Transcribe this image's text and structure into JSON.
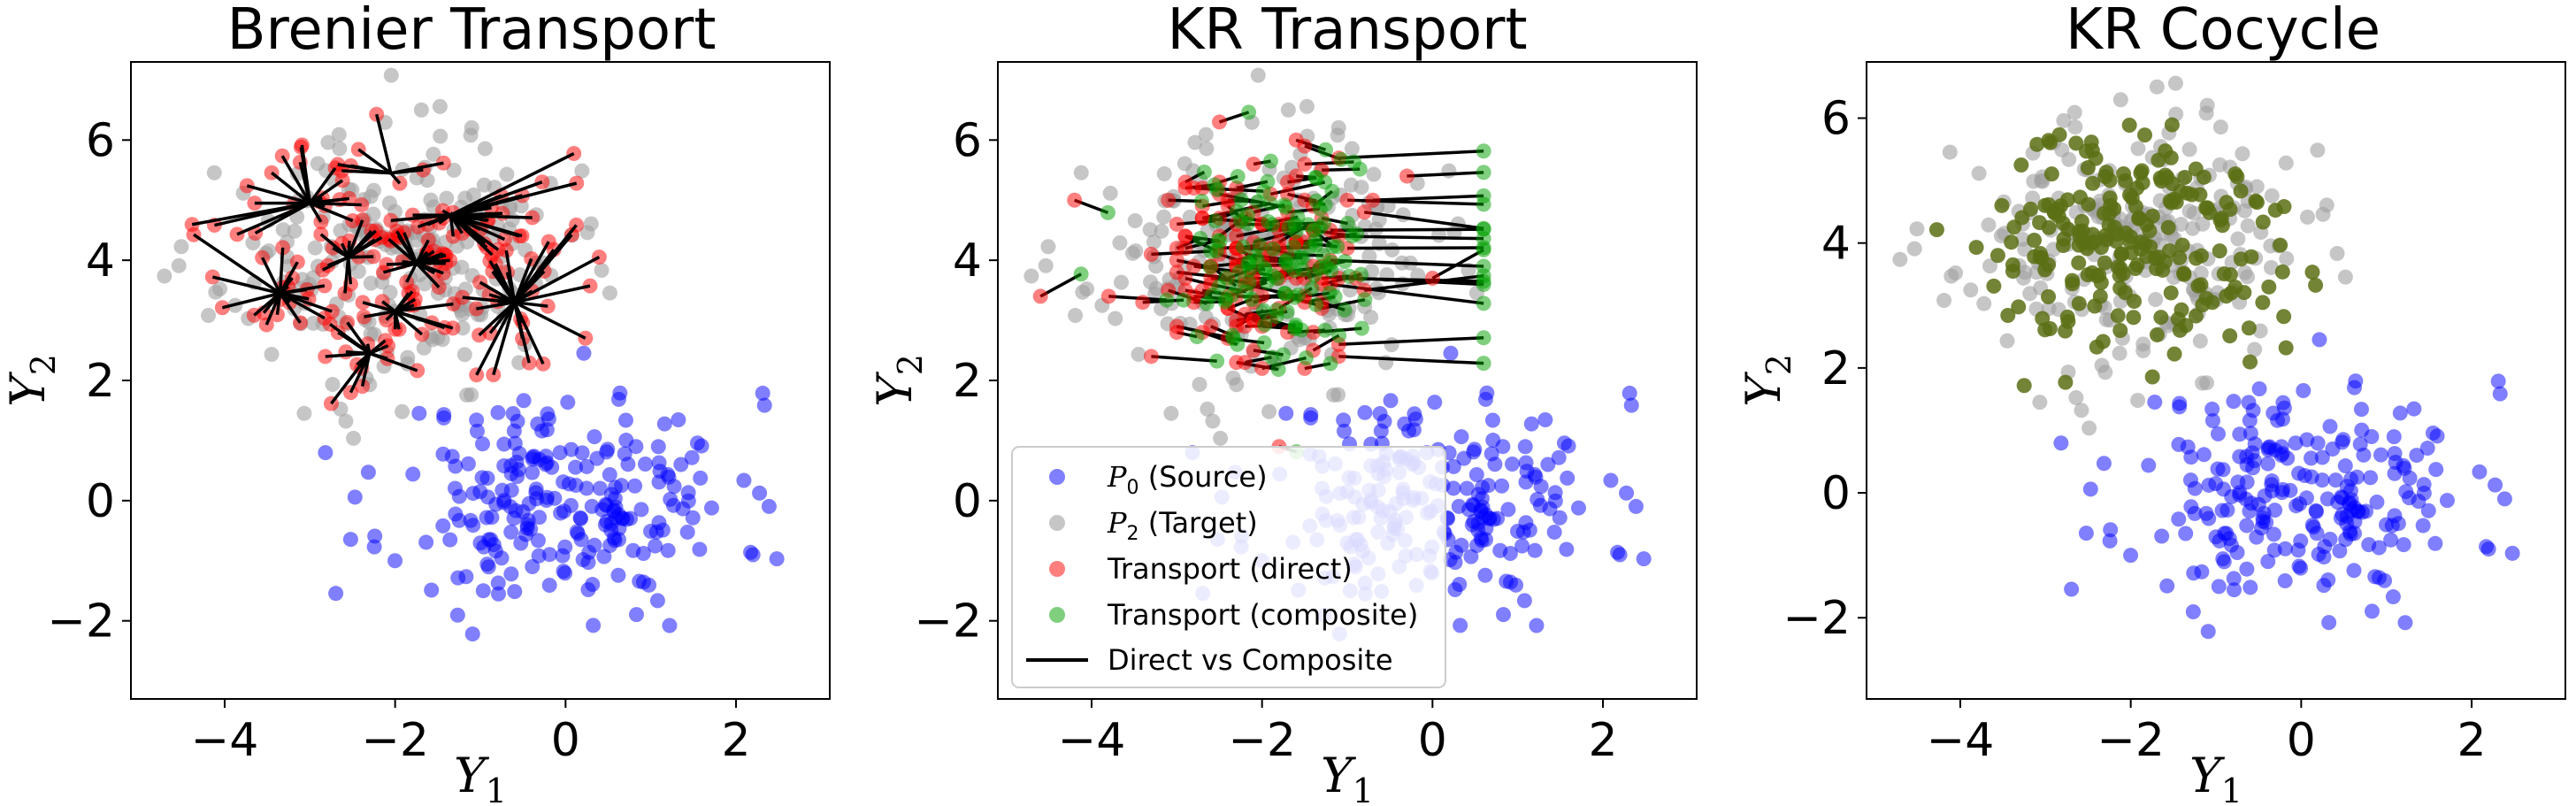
{
  "chart_data": [
    {
      "type": "scatter",
      "title": "Brenier Transport",
      "xlabel": "Y_1",
      "ylabel": "Y_2",
      "xlim": [
        -5.1,
        3.1
      ],
      "ylim": [
        -3.3,
        7.3
      ],
      "xticks": [
        -4,
        -2,
        0,
        2
      ],
      "yticks": [
        -2,
        0,
        2,
        4,
        6
      ],
      "xtick_labels": [
        "−4",
        "−2",
        "0",
        "2"
      ],
      "ytick_labels": [
        "−2",
        "0",
        "2",
        "4",
        "6"
      ],
      "series": [
        {
          "color": "#0000ff",
          "alpha": 0.5,
          "cluster": {
            "center": [
              0.0,
              0.0
            ],
            "spread": [
              1.0,
              0.9
            ],
            "n": 230,
            "seed": 11
          }
        },
        {
          "color": "#a0a0a0",
          "alpha": 0.6,
          "cluster": {
            "center": [
              -2.0,
              4.0
            ],
            "spread": [
              1.0,
              1.0
            ],
            "n": 230,
            "seed": 23
          }
        },
        {
          "color": "#ff0000",
          "alpha": 0.5,
          "cluster": {
            "center": [
              -2.0,
              4.0
            ],
            "spread": [
              1.0,
              1.0
            ],
            "n": 180,
            "seed": 37
          }
        }
      ],
      "hubs": [
        [
          -2.05,
          5.45
        ],
        [
          -3.0,
          4.95
        ],
        [
          -1.35,
          4.75
        ],
        [
          -2.55,
          4.05
        ],
        [
          -1.75,
          3.95
        ],
        [
          -0.6,
          3.3
        ],
        [
          -2.0,
          3.15
        ],
        [
          -3.35,
          3.45
        ],
        [
          -2.3,
          2.45
        ]
      ],
      "line_color": "#000000"
    },
    {
      "type": "scatter",
      "title": "KR Transport",
      "xlabel": "Y_1",
      "ylabel": "Y_2",
      "xlim": [
        -5.1,
        3.1
      ],
      "ylim": [
        -3.3,
        7.3
      ],
      "xticks": [
        -4,
        -2,
        0,
        2
      ],
      "yticks": [
        -2,
        0,
        2,
        4,
        6
      ],
      "xtick_labels": [
        "−4",
        "−2",
        "0",
        "2"
      ],
      "ytick_labels": [
        "−2",
        "0",
        "2",
        "4",
        "6"
      ],
      "series": [
        {
          "name": "(Source)",
          "color": "#0000ff",
          "alpha": 0.5,
          "cluster": {
            "center": [
              0.0,
              0.0
            ],
            "spread": [
              1.0,
              0.9
            ],
            "n": 230,
            "seed": 11
          }
        },
        {
          "name": "(Target)",
          "color": "#a0a0a0",
          "alpha": 0.6,
          "cluster": {
            "center": [
              -2.0,
              4.0
            ],
            "spread": [
              1.0,
              1.0
            ],
            "n": 230,
            "seed": 23
          }
        },
        {
          "name": "Transport (direct)",
          "color": "#ff0000",
          "alpha": 0.5
        },
        {
          "name": "Transport (composite)",
          "color": "#00a000",
          "alpha": 0.5
        },
        {
          "name": "Direct vs Composite",
          "color": "#000000"
        }
      ],
      "composite_edge_x": 0.6,
      "legend": {
        "location": "lower left",
        "entries": [
          {
            "symbol": "P",
            "sub": "0",
            "label": "(Source)"
          },
          {
            "symbol": "P",
            "sub": "2",
            "label": "(Target)"
          },
          {
            "label": "Transport (direct)"
          },
          {
            "label": "Transport (composite)"
          },
          {
            "label": "Direct vs Composite"
          }
        ]
      }
    },
    {
      "type": "scatter",
      "title": "KR Cocycle",
      "xlabel": "Y_1",
      "ylabel": "Y_2",
      "xlim": [
        -5.1,
        3.1
      ],
      "ylim": [
        -3.3,
        6.9
      ],
      "xticks": [
        -4,
        -2,
        0,
        2
      ],
      "yticks": [
        -2,
        0,
        2,
        4,
        6
      ],
      "xtick_labels": [
        "−4",
        "−2",
        "0",
        "2"
      ],
      "ytick_labels": [
        "−2",
        "0",
        "2",
        "4",
        "6"
      ],
      "series": [
        {
          "color": "#0000ff",
          "alpha": 0.5,
          "cluster": {
            "center": [
              0.0,
              0.0
            ],
            "spread": [
              1.0,
              0.9
            ],
            "n": 230,
            "seed": 11
          }
        },
        {
          "color": "#a0a0a0",
          "alpha": 0.6,
          "cluster": {
            "center": [
              -2.0,
              4.0
            ],
            "spread": [
              1.0,
              1.0
            ],
            "n": 230,
            "seed": 23
          }
        },
        {
          "color": "#5a6e14",
          "alpha": 0.85,
          "cluster": {
            "center": [
              -2.0,
              3.95
            ],
            "spread": [
              0.9,
              0.9
            ],
            "n": 220,
            "seed": 51
          }
        }
      ]
    }
  ]
}
